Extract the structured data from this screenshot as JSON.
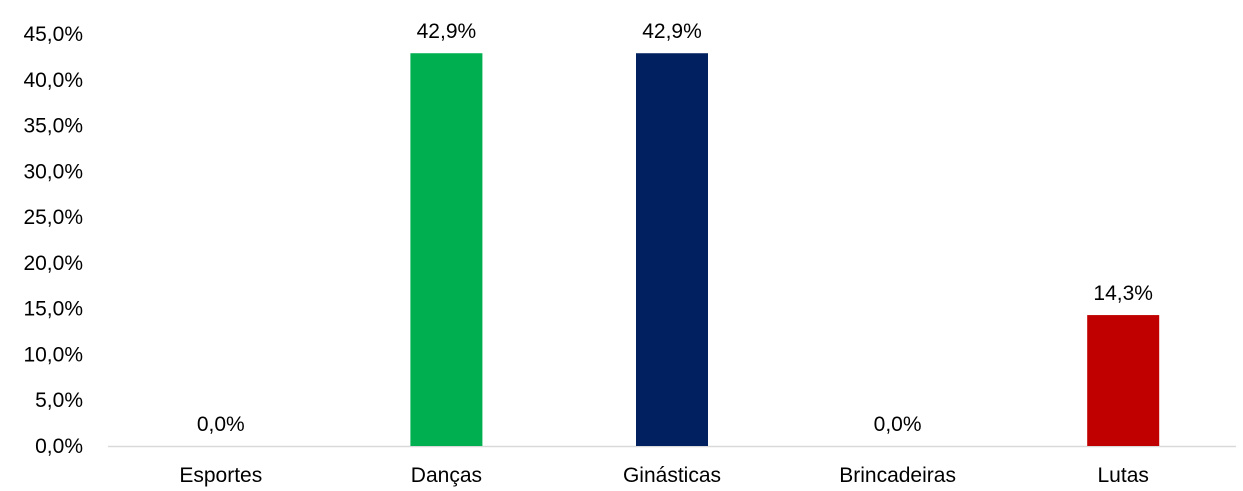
{
  "chart_data": {
    "type": "bar",
    "title": "",
    "xlabel": "",
    "ylabel": "",
    "categories": [
      "Esportes",
      "Danças",
      "Ginásticas",
      "Brincadeiras",
      "Lutas"
    ],
    "values": [
      0.0,
      42.9,
      42.9,
      0.0,
      14.3
    ],
    "data_labels": [
      "0,0%",
      "42,9%",
      "42,9%",
      "0,0%",
      "14,3%"
    ],
    "colors": [
      "#00b050",
      "#00b050",
      "#002060",
      "#7f7f7f",
      "#c00000"
    ],
    "ylim": [
      0,
      45
    ],
    "yticks": [
      0,
      5,
      10,
      15,
      20,
      25,
      30,
      35,
      40,
      45
    ],
    "ytick_labels": [
      "0,0%",
      "5,0%",
      "10,0%",
      "15,0%",
      "20,0%",
      "25,0%",
      "30,0%",
      "35,0%",
      "40,0%",
      "45,0%"
    ],
    "grid": false,
    "legend": "none",
    "axis_color": "#d9d9d9"
  }
}
